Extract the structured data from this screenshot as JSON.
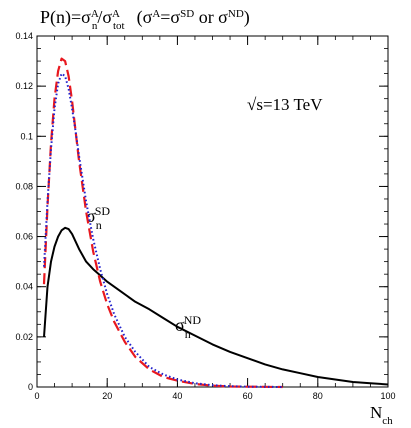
{
  "chart_data": {
    "type": "line",
    "title": {
      "prefix": "P(n)=σ",
      "sup_num": "A",
      "sub_num": "n",
      "slash": "/σ",
      "sup_den": "A",
      "sub_den": "tot",
      "paren_a": "(σ",
      "paren_sup_a": "A",
      "paren_eq": "=σ",
      "paren_sup_sd": "SD",
      "paren_or": " or σ",
      "paren_sup_nd": "ND",
      "paren_close": ")"
    },
    "energy_label": "√s=13 TeV",
    "xlabel": {
      "main": "N",
      "sub": "ch"
    },
    "ylabel": "",
    "xlim": [
      0,
      100
    ],
    "ylim": [
      0,
      0.14
    ],
    "xticks": [
      0,
      20,
      40,
      60,
      80,
      100
    ],
    "yticks": [
      0,
      0.02,
      0.04,
      0.06,
      0.08,
      0.1,
      0.12,
      0.14
    ],
    "ytick_labels": [
      "0",
      "0.02",
      "0.04",
      "0.06",
      "0.08",
      "0.1",
      "0.12",
      "0.14"
    ],
    "x_minor_step": 5,
    "y_minor_step": 0.005,
    "grid": false,
    "series": [
      {
        "label": {
          "sigma": "σ",
          "sub": "n",
          "sup": "SD"
        },
        "color": "#e8181f",
        "style": "dashed",
        "x": [
          2,
          3,
          4,
          5,
          6,
          7,
          8,
          9,
          10,
          11,
          12,
          14,
          16,
          18,
          20,
          22,
          25,
          28,
          32,
          36,
          40,
          45,
          50,
          55,
          60,
          70
        ],
        "y": [
          0.041,
          0.072,
          0.097,
          0.115,
          0.126,
          0.131,
          0.13,
          0.124,
          0.114,
          0.102,
          0.09,
          0.07,
          0.054,
          0.042,
          0.033,
          0.026,
          0.018,
          0.012,
          0.007,
          0.004,
          0.0025,
          0.0012,
          0.0005,
          0.0002,
          0.0001,
          0.0
        ]
      },
      {
        "label": {
          "sigma": "",
          "sub": "",
          "sup": ""
        },
        "color": "#2222cc",
        "style": "dotted",
        "x": [
          2,
          3,
          4,
          5,
          6,
          7,
          8,
          9,
          10,
          11,
          12,
          14,
          16,
          18,
          20,
          22,
          25,
          28,
          32,
          36,
          40,
          45,
          50,
          55,
          60,
          70
        ],
        "y": [
          0.048,
          0.074,
          0.095,
          0.111,
          0.121,
          0.125,
          0.124,
          0.119,
          0.111,
          0.102,
          0.092,
          0.074,
          0.059,
          0.047,
          0.037,
          0.029,
          0.02,
          0.014,
          0.008,
          0.005,
          0.003,
          0.0015,
          0.0007,
          0.0003,
          0.0001,
          0.0
        ]
      },
      {
        "label": {
          "sigma": "σ",
          "sub": "n",
          "sup": "ND"
        },
        "color": "#000000",
        "style": "solid",
        "x": [
          2,
          3,
          4,
          5,
          6,
          7,
          8,
          9,
          10,
          11,
          12,
          14,
          16,
          18,
          20,
          24,
          28,
          32,
          36,
          40,
          45,
          50,
          55,
          60,
          65,
          70,
          75,
          80,
          85,
          90,
          95,
          100
        ],
        "y": [
          0.02,
          0.04,
          0.05,
          0.056,
          0.06,
          0.0625,
          0.0635,
          0.063,
          0.061,
          0.058,
          0.055,
          0.05,
          0.047,
          0.0445,
          0.042,
          0.038,
          0.034,
          0.031,
          0.0275,
          0.024,
          0.0205,
          0.017,
          0.014,
          0.0115,
          0.009,
          0.007,
          0.0055,
          0.004,
          0.003,
          0.002,
          0.0015,
          0.001
        ]
      }
    ]
  }
}
